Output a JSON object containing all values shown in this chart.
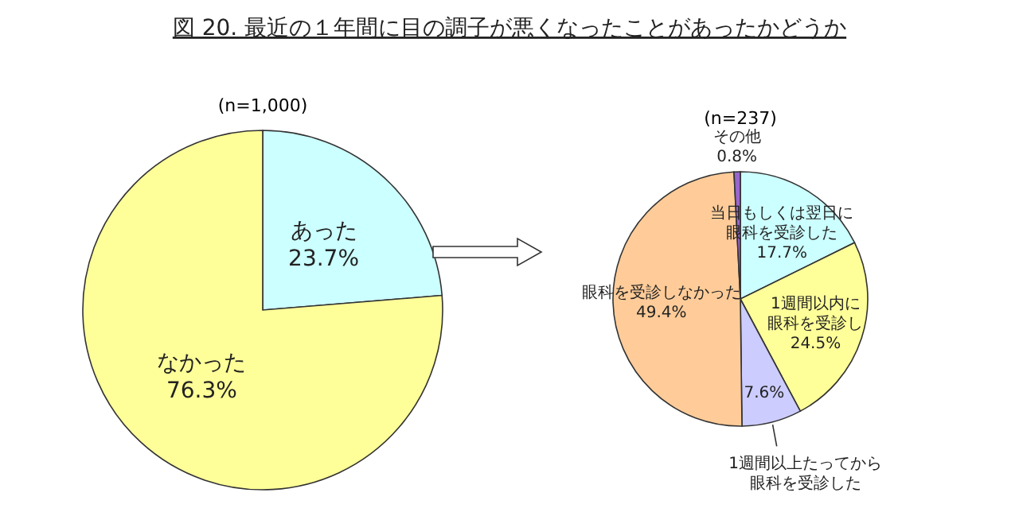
{
  "chart_data": [
    {
      "type": "pie",
      "title": "図 20.  最近の１年間に目の調子が悪くなったことがあったかどうか",
      "subtitle": "(n=1,000)",
      "categories": [
        "あった",
        "なかった"
      ],
      "values": [
        23.7,
        76.3
      ],
      "colors": [
        "#ccffff",
        "#ffff99"
      ],
      "value_labels": [
        "23.7%",
        "76.3%"
      ]
    },
    {
      "type": "pie",
      "subtitle": "(n=237)",
      "categories": [
        "当日もしくは翌日に眼科を受診した",
        "1週間以内に眼科を受診し",
        "1週間以上たってから眼科を受診した",
        "眼科を受診しなかった",
        "その他"
      ],
      "values": [
        17.7,
        24.5,
        7.6,
        49.4,
        0.8
      ],
      "colors": [
        "#ccffff",
        "#ffff99",
        "#ccccff",
        "#ffcc99",
        "#9966cc"
      ],
      "value_labels": [
        "17.7%",
        "24.5%",
        "7.6%",
        "49.4%",
        "0.8%"
      ]
    }
  ]
}
